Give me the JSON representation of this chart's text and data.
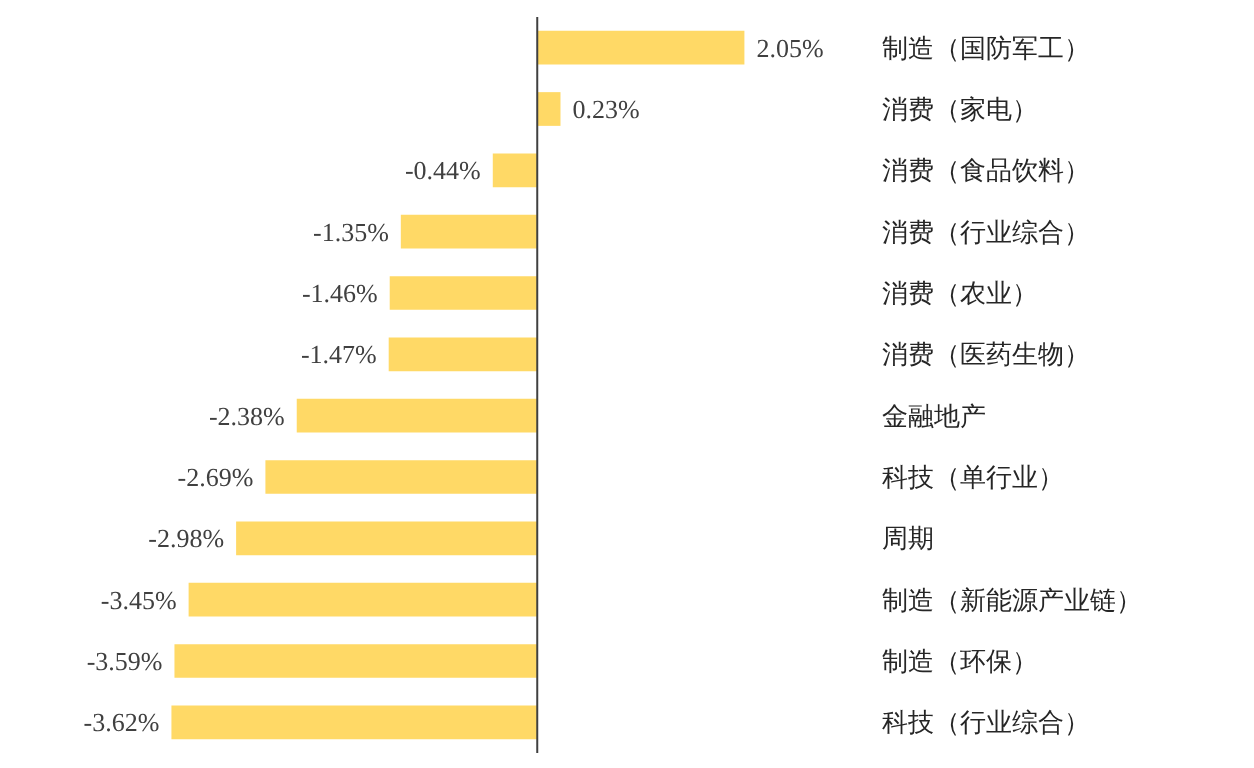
{
  "chart_data": {
    "type": "bar",
    "orientation": "horizontal",
    "categories": [
      "制造（国防军工）",
      "消费（家电）",
      "消费（食品饮料）",
      "消费（行业综合）",
      "消费（农业）",
      "消费（医药生物）",
      "金融地产",
      "科技（单行业）",
      "周期",
      "制造（新能源产业链）",
      "制造（环保）",
      "科技（行业综合）"
    ],
    "values": [
      2.05,
      0.23,
      -0.44,
      -1.35,
      -1.46,
      -1.47,
      -2.38,
      -2.69,
      -2.98,
      -3.45,
      -3.59,
      -3.62
    ],
    "value_labels": [
      "2.05%",
      "0.23%",
      "-0.44%",
      "-1.35%",
      "-1.46%",
      "-1.47%",
      "-2.38%",
      "-2.69%",
      "-2.98%",
      "-3.45%",
      "-3.59%",
      "-3.62%"
    ],
    "color": "#ffd966",
    "grid": false,
    "legend": false
  }
}
